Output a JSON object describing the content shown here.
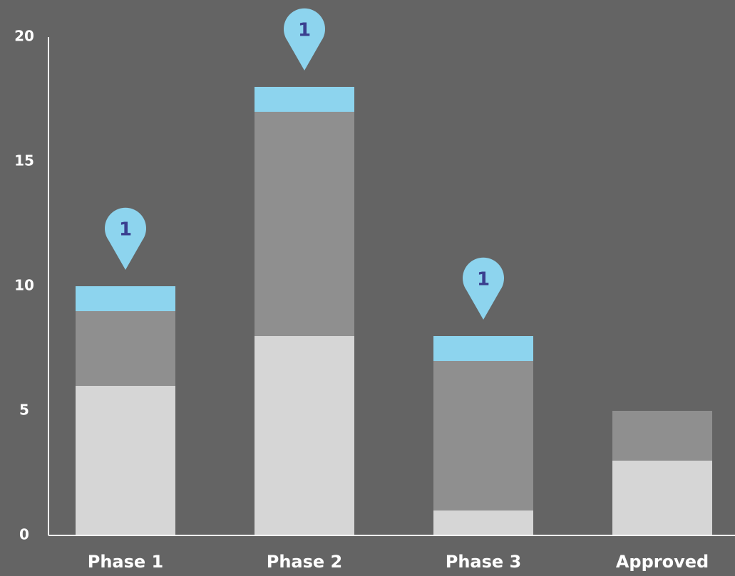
{
  "chart_data": {
    "type": "bar",
    "stacked": true,
    "categories": [
      "Phase 1",
      "Phase 2",
      "Phase 3",
      "Approved"
    ],
    "series": [
      {
        "values": [
          6,
          8,
          1,
          3
        ],
        "color": "#d6d6d6"
      },
      {
        "values": [
          3,
          9,
          6,
          2
        ],
        "color": "#8f8f8f"
      },
      {
        "values": [
          1,
          1,
          1,
          0
        ],
        "color": "#8dd4ee"
      }
    ],
    "markers": [
      {
        "category": "Phase 1",
        "label": "1"
      },
      {
        "category": "Phase 2",
        "label": "1"
      },
      {
        "category": "Phase 3",
        "label": "1"
      }
    ],
    "ylim": [
      0,
      20
    ],
    "yticks": [
      "0",
      "5",
      "10",
      "15",
      "20"
    ],
    "grid": false,
    "background": "#646464",
    "axis_color": "#ffffff",
    "marker_color": "#8dd4ee",
    "marker_text_color": "#3a3f8f"
  }
}
